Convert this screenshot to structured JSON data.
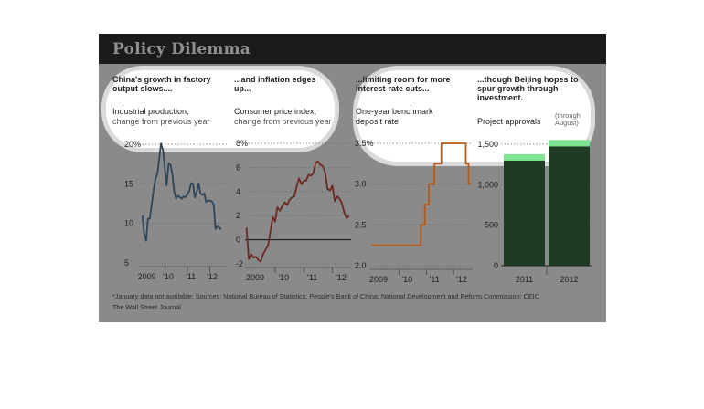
{
  "title": "Policy Dilemma",
  "panels": [
    {
      "title": "China's growth in factory output slows....",
      "subtitle": "Industrial production,",
      "subtitle2": "change from previous year"
    },
    {
      "title": "...and inflation edges up...",
      "subtitle": "Consumer price index,",
      "subtitle2": "change from previous year"
    },
    {
      "title": "...limiting room for more interest-rate cuts...",
      "subtitle": "One-year benchmark deposit rate",
      "subtitle2": ""
    },
    {
      "title": "...though Beijing hopes to spur growth through investment.",
      "subtitle": "Project approvals",
      "subtitle2": "(through August)"
    }
  ],
  "footnote": "*January data not available; Sources: National Bureau of Statistics; People's Bank of China; National Development and Reform Commission; CEIC",
  "credit": "The Wall Street Journal",
  "colors": {
    "production": "#2e4657",
    "cpi": "#6b2a22",
    "rate": "#b65a17",
    "bars": "#1f3b25",
    "bars_highlight": "#7de58f"
  },
  "chart_data": [
    {
      "type": "line",
      "name": "industrial-production",
      "x_ticks": [
        "2009",
        "'10",
        "'11",
        "'12"
      ],
      "y_ticks": [
        "20%",
        "15",
        "10",
        "5"
      ],
      "ylim": [
        5,
        20
      ],
      "grid": true,
      "x": [
        2009.0,
        2009.08,
        2009.17,
        2009.25,
        2009.33,
        2009.42,
        2009.5,
        2009.58,
        2009.67,
        2009.75,
        2009.83,
        2009.92,
        2010.08,
        2010.17,
        2010.25,
        2010.33,
        2010.42,
        2010.5,
        2010.58,
        2010.67,
        2010.75,
        2010.83,
        2010.92,
        2011.08,
        2011.17,
        2011.25,
        2011.33,
        2011.42,
        2011.5,
        2011.58,
        2011.67,
        2011.75,
        2011.83,
        2011.92,
        2012.08,
        2012.17,
        2012.25,
        2012.33,
        2012.42,
        2012.5
      ],
      "values": [
        11,
        8.7,
        7.8,
        10.6,
        10.6,
        12.5,
        14.2,
        15.6,
        16.3,
        18.2,
        20.1,
        19.2,
        14.8,
        17.6,
        17.4,
        16.3,
        14,
        13.1,
        13.5,
        13.3,
        13.1,
        13.4,
        13.3,
        14.1,
        15.1,
        15.0,
        13.3,
        14.0,
        15.1,
        13.8,
        13.6,
        13.8,
        12.7,
        12.9,
        12.8,
        12.4,
        9.3,
        9.6,
        9.5,
        9.2
      ]
    },
    {
      "type": "line",
      "name": "consumer-price-index",
      "x_ticks": [
        "2009",
        "'10",
        "'11",
        "'12"
      ],
      "y_ticks": [
        "8%",
        "6",
        "4",
        "2",
        "0",
        "-2"
      ],
      "ylim": [
        -2,
        8
      ],
      "grid": true,
      "x": [
        2009.0,
        2009.08,
        2009.17,
        2009.25,
        2009.33,
        2009.42,
        2009.5,
        2009.58,
        2009.67,
        2009.75,
        2009.83,
        2009.92,
        2010.0,
        2010.08,
        2010.17,
        2010.25,
        2010.33,
        2010.42,
        2010.5,
        2010.58,
        2010.67,
        2010.75,
        2010.83,
        2010.92,
        2011.0,
        2011.08,
        2011.17,
        2011.25,
        2011.33,
        2011.42,
        2011.5,
        2011.58,
        2011.67,
        2011.75,
        2011.83,
        2011.92,
        2012.0,
        2012.08,
        2012.17,
        2012.25,
        2012.33,
        2012.42,
        2012.5,
        2012.58
      ],
      "values": [
        1.0,
        -1.6,
        -1.2,
        -1.5,
        -1.4,
        -1.7,
        -1.8,
        -1.2,
        -0.8,
        -0.5,
        0.6,
        1.9,
        1.5,
        2.7,
        2.4,
        2.8,
        3.1,
        2.9,
        3.3,
        3.5,
        3.6,
        4.4,
        5.1,
        4.6,
        4.9,
        4.9,
        5.4,
        5.3,
        5.5,
        6.4,
        6.5,
        6.2,
        6.1,
        5.5,
        4.2,
        4.1,
        4.5,
        3.2,
        3.6,
        3.4,
        3.0,
        2.2,
        1.8,
        2.0
      ]
    },
    {
      "type": "line",
      "name": "deposit-rate",
      "x_ticks": [
        "2009",
        "'10",
        "'11",
        "'12"
      ],
      "y_ticks": [
        "3.5%",
        "3.0",
        "2.5",
        "2.0"
      ],
      "ylim": [
        2.0,
        3.5
      ],
      "grid": true,
      "x": [
        2009.0,
        2010.8,
        2010.8,
        2010.95,
        2010.95,
        2011.1,
        2011.1,
        2011.3,
        2011.3,
        2011.55,
        2011.55,
        2012.45,
        2012.45,
        2012.55,
        2012.55,
        2012.62
      ],
      "values": [
        2.25,
        2.25,
        2.5,
        2.5,
        2.75,
        2.75,
        3.0,
        3.0,
        3.25,
        3.25,
        3.5,
        3.5,
        3.25,
        3.25,
        3.0,
        3.0
      ]
    },
    {
      "type": "bar",
      "name": "project-approvals",
      "categories": [
        "2011",
        "2012"
      ],
      "values": [
        1375,
        1550
      ],
      "y_ticks": [
        "1,500",
        "1,000",
        "500",
        "0"
      ],
      "ylim": [
        0,
        1600
      ],
      "grid": true
    }
  ]
}
